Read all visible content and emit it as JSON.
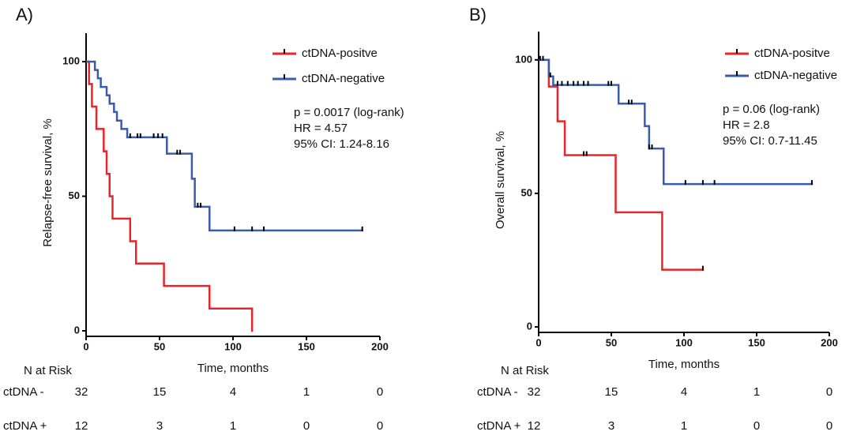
{
  "chart_data": [
    {
      "type": "step",
      "panel_label": "A)",
      "xlabel": "Time, months",
      "ylabel": "Relapse-free survival, %",
      "xlim": [
        0,
        200
      ],
      "ylim": [
        0,
        110
      ],
      "xticks": [
        0,
        50,
        100,
        150,
        200
      ],
      "yticks": [
        0,
        50,
        100
      ],
      "annotations": [
        "p = 0.0017 (log-rank)",
        "HR = 4.57",
        "95% CI: 1.24-8.16"
      ],
      "series": [
        {
          "name": "ctDNA-positve",
          "color": "#e8252a",
          "x": [
            0,
            2,
            4,
            7,
            12,
            14,
            16,
            18,
            30,
            34,
            53,
            84,
            113
          ],
          "values": [
            100,
            91.7,
            83.3,
            75,
            66.7,
            58.3,
            50,
            41.7,
            33.3,
            25,
            16.7,
            8.3,
            0
          ]
        },
        {
          "name": "ctDNA-negative",
          "color": "#3b5bab",
          "x": [
            0,
            6,
            8,
            10,
            14,
            16,
            19,
            21,
            24,
            28,
            55,
            72,
            74,
            84,
            188
          ],
          "values": [
            100,
            96.9,
            93.8,
            90.6,
            87.5,
            84.4,
            81.3,
            78.1,
            75,
            71.9,
            65.8,
            56.5,
            46.1,
            37.3,
            37.3
          ],
          "censored": {
            "x": [
              30,
              35,
              37,
              46,
              49,
              52,
              62,
              64,
              76,
              78,
              101,
              113,
              121,
              188
            ],
            "values": [
              71.9,
              71.9,
              71.9,
              71.9,
              71.9,
              71.9,
              65.8,
              65.8,
              46.1,
              46.1,
              37.3,
              37.3,
              37.3,
              37.3
            ]
          }
        }
      ],
      "risk_table": {
        "title": "N at Risk",
        "rows": [
          {
            "label": "ctDNA -",
            "values": [
              32,
              15,
              4,
              1,
              0
            ]
          },
          {
            "label": "ctDNA +",
            "values": [
              12,
              3,
              1,
              0,
              0
            ]
          }
        ]
      }
    },
    {
      "type": "step",
      "panel_label": "B)",
      "xlabel": "Time, months",
      "ylabel": "Overall survival, %",
      "xlim": [
        0,
        200
      ],
      "ylim": [
        0,
        110
      ],
      "xticks": [
        0,
        50,
        100,
        150,
        200
      ],
      "yticks": [
        0,
        50,
        100
      ],
      "annotations": [
        "p = 0.06 (log-rank)",
        "HR = 2.8",
        "95% CI: 0.7-11.45"
      ],
      "series": [
        {
          "name": "ctDNA-positve",
          "color": "#e8252a",
          "x": [
            0,
            7,
            13,
            18,
            53,
            85,
            113
          ],
          "values": [
            100,
            90,
            77,
            64.3,
            42.9,
            21.4,
            21.4
          ],
          "censored": {
            "x": [
              31,
              33,
              113
            ],
            "values": [
              64.3,
              64.3,
              21.4
            ]
          }
        },
        {
          "name": "ctDNA-negative",
          "color": "#3b5bab",
          "x": [
            0,
            7,
            10,
            55,
            73,
            76,
            86,
            188
          ],
          "values": [
            100,
            93.8,
            90.6,
            83.6,
            75.2,
            66.8,
            53.5,
            53.5
          ],
          "censored": {
            "x": [
              1,
              3,
              8,
              13,
              16,
              20,
              24,
              27,
              31,
              34,
              48,
              50,
              62,
              64,
              76,
              78,
              101,
              113,
              121,
              188
            ],
            "values": [
              100,
              100,
              93.8,
              90.6,
              90.6,
              90.6,
              90.6,
              90.6,
              90.6,
              90.6,
              90.6,
              90.6,
              83.6,
              83.6,
              66.8,
              66.8,
              53.5,
              53.5,
              53.5,
              53.5
            ]
          }
        }
      ],
      "risk_table": {
        "title": "N at Risk",
        "rows": [
          {
            "label": "ctDNA -",
            "values": [
              32,
              15,
              4,
              1,
              0
            ]
          },
          {
            "label": "ctDNA +",
            "values": [
              12,
              3,
              1,
              0,
              0
            ]
          }
        ]
      }
    }
  ]
}
